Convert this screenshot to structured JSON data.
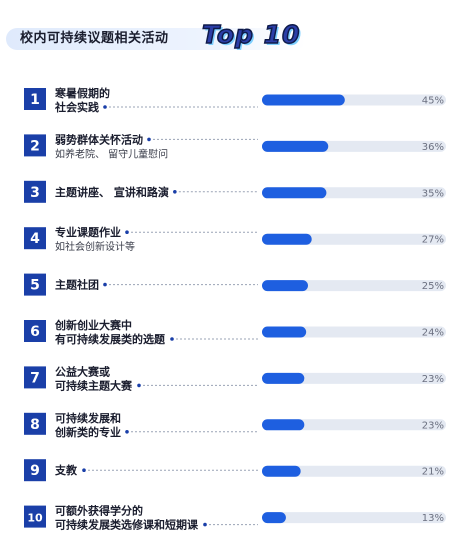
{
  "header": {
    "title": "校内可持续议题相关活动",
    "badge": "Top 10"
  },
  "colors": {
    "accent": "#1e5fe0",
    "number_box": "#1a3fa8",
    "track": "#e4e9f2"
  },
  "chart_data": {
    "type": "bar",
    "title": "校内可持续议题相关活动 Top 10",
    "categories": [
      {
        "rank": "1",
        "line1": "寒暑假期的",
        "line2": "社会实践",
        "line2_style": "bold"
      },
      {
        "rank": "2",
        "line1": "弱势群体关怀活动",
        "line2": "如养老院、 留守儿童慰问",
        "line2_style": "sub"
      },
      {
        "rank": "3",
        "line1": "主题讲座、 宣讲和路演",
        "line2": "",
        "line2_style": ""
      },
      {
        "rank": "4",
        "line1": "专业课题作业",
        "line2": "如社会创新设计等",
        "line2_style": "sub"
      },
      {
        "rank": "5",
        "line1": "主题社团",
        "line2": "",
        "line2_style": ""
      },
      {
        "rank": "6",
        "line1": "创新创业大赛中",
        "line2": "有可持续发展类的选题",
        "line2_style": "bold"
      },
      {
        "rank": "7",
        "line1": "公益大赛或",
        "line2": "可持续主题大赛",
        "line2_style": "bold"
      },
      {
        "rank": "8",
        "line1": "可持续发展和",
        "line2": "创新类的专业",
        "line2_style": "bold"
      },
      {
        "rank": "9",
        "line1": "支教",
        "line2": "",
        "line2_style": ""
      },
      {
        "rank": "10",
        "line1": "可额外获得学分的",
        "line2": "可持续发展类选修课和短期课",
        "line2_style": "bold"
      }
    ],
    "values": [
      45,
      36,
      35,
      27,
      25,
      24,
      23,
      23,
      21,
      13
    ],
    "value_labels": [
      "45%",
      "36%",
      "35%",
      "27%",
      "25%",
      "24%",
      "23%",
      "23%",
      "21%",
      "13%"
    ],
    "xlim": [
      0,
      100
    ],
    "grid": false,
    "legend": "none"
  }
}
